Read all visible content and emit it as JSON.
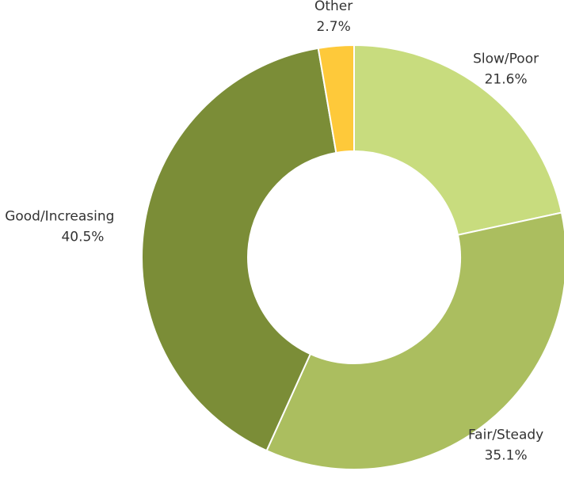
{
  "chart_data": {
    "type": "donut",
    "categories": [
      "Slow/Poor",
      "Fair/Steady",
      "Good/Increasing",
      "Other"
    ],
    "values": [
      21.6,
      35.1,
      40.5,
      2.7
    ],
    "value_labels": [
      "21.6%",
      "35.1%",
      "40.5%",
      "2.7%"
    ],
    "colors": [
      "#c8dc7e",
      "#abbe5f",
      "#7b8d37",
      "#fec93a"
    ]
  }
}
